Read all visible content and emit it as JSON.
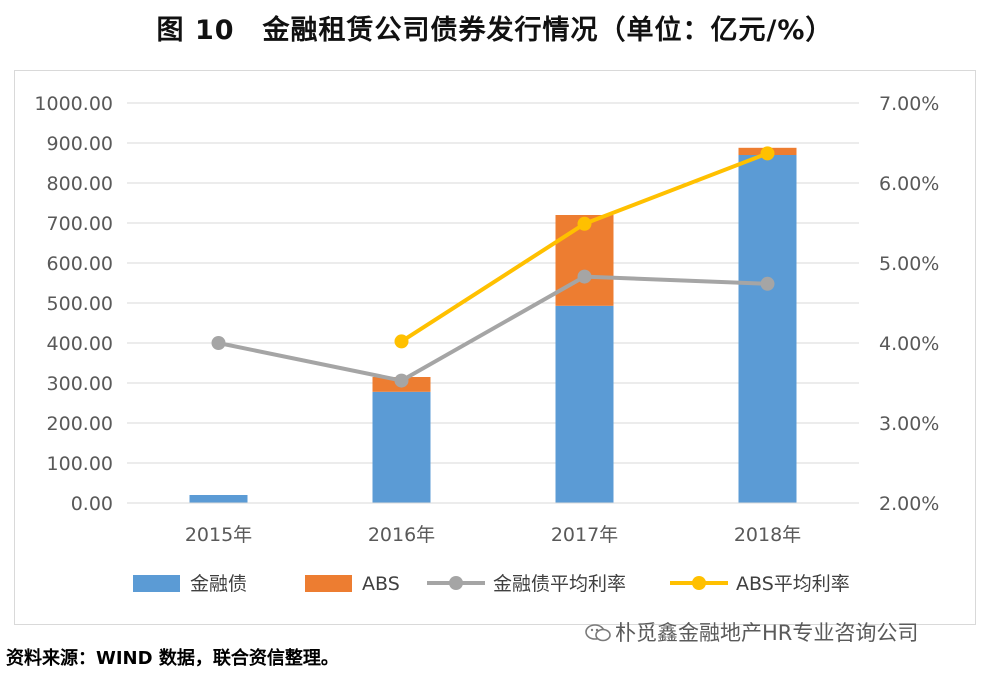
{
  "title": "图 10　金融租赁公司债券发行情况（单位：亿元/%）",
  "source": "资料来源：WIND 数据，联合资信整理。",
  "watermark": "朴觅鑫金融地产HR专业咨询公司",
  "colors": {
    "bond": "#5B9BD5",
    "abs": "#ED7D31",
    "bond_rate": "#A5A5A5",
    "abs_rate": "#FFC000",
    "grid": "#D9D9D9"
  },
  "chart_data": {
    "type": "bar",
    "stacked": true,
    "categories": [
      "2015年",
      "2016年",
      "2017年",
      "2018年"
    ],
    "series": [
      {
        "name": "金融债",
        "type": "bar",
        "axis": "left",
        "values": [
          20,
          278,
          493,
          870
        ]
      },
      {
        "name": "ABS",
        "type": "bar",
        "axis": "left",
        "values": [
          0,
          37,
          227,
          18
        ]
      },
      {
        "name": "金融债平均利率",
        "type": "line",
        "axis": "right",
        "values": [
          4.0,
          3.53,
          4.83,
          4.74
        ]
      },
      {
        "name": "ABS平均利率",
        "type": "line",
        "axis": "right",
        "values": [
          null,
          4.02,
          5.49,
          6.37
        ]
      }
    ],
    "y_left": {
      "min": 0,
      "max": 1000,
      "step": 100,
      "ticks": [
        "0.00",
        "100.00",
        "200.00",
        "300.00",
        "400.00",
        "500.00",
        "600.00",
        "700.00",
        "800.00",
        "900.00",
        "1000.00"
      ]
    },
    "y_right": {
      "min": 2,
      "max": 7,
      "step": 1,
      "ticks": [
        "2.00%",
        "3.00%",
        "4.00%",
        "5.00%",
        "6.00%",
        "7.00%"
      ]
    },
    "gridlines": true,
    "legend_position": "bottom"
  }
}
